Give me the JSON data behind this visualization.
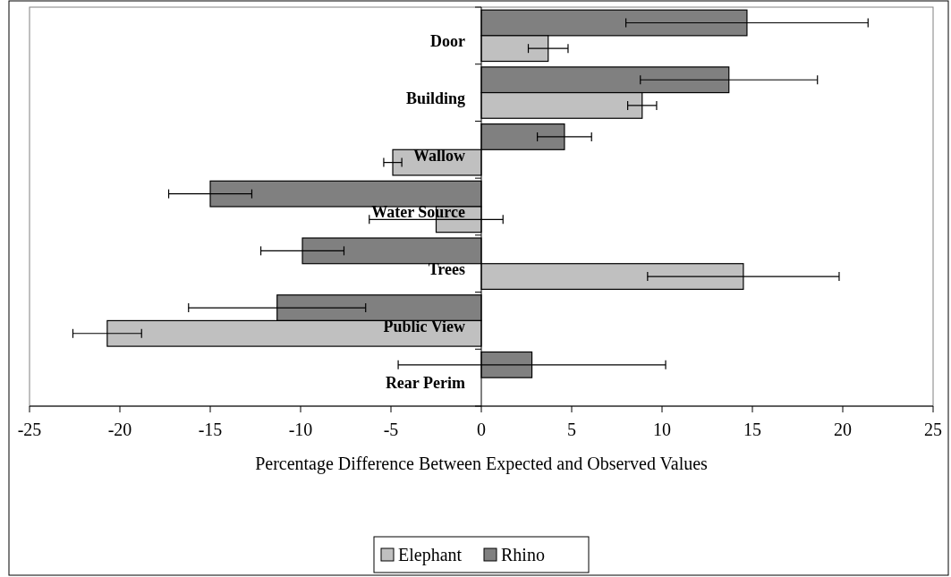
{
  "chart_data": {
    "type": "bar",
    "orientation": "horizontal",
    "xlabel": "Percentage Difference Between Expected and Observed Values",
    "categories": [
      "Door",
      "Building",
      "Wallow",
      "Water Source",
      "Trees",
      "Public View",
      "Rear Perim"
    ],
    "series": [
      {
        "name": "Rhino",
        "color": "#808080",
        "values": [
          14.7,
          13.7,
          4.6,
          -15.0,
          -9.9,
          -11.3,
          2.8
        ],
        "errors": [
          6.7,
          4.9,
          1.5,
          2.3,
          2.3,
          4.9,
          7.4
        ]
      },
      {
        "name": "Elephant",
        "color": "#c0c0c0",
        "values": [
          3.7,
          8.9,
          -4.9,
          -2.5,
          14.5,
          -20.7,
          null
        ],
        "errors": [
          1.1,
          0.8,
          0.5,
          3.7,
          5.3,
          1.9,
          null
        ]
      }
    ],
    "xlim": [
      -25,
      25
    ],
    "xticks": [
      -25,
      -20,
      -15,
      -10,
      -5,
      0,
      5,
      10,
      15,
      20,
      25
    ],
    "legend": "bottom",
    "grid": false
  }
}
